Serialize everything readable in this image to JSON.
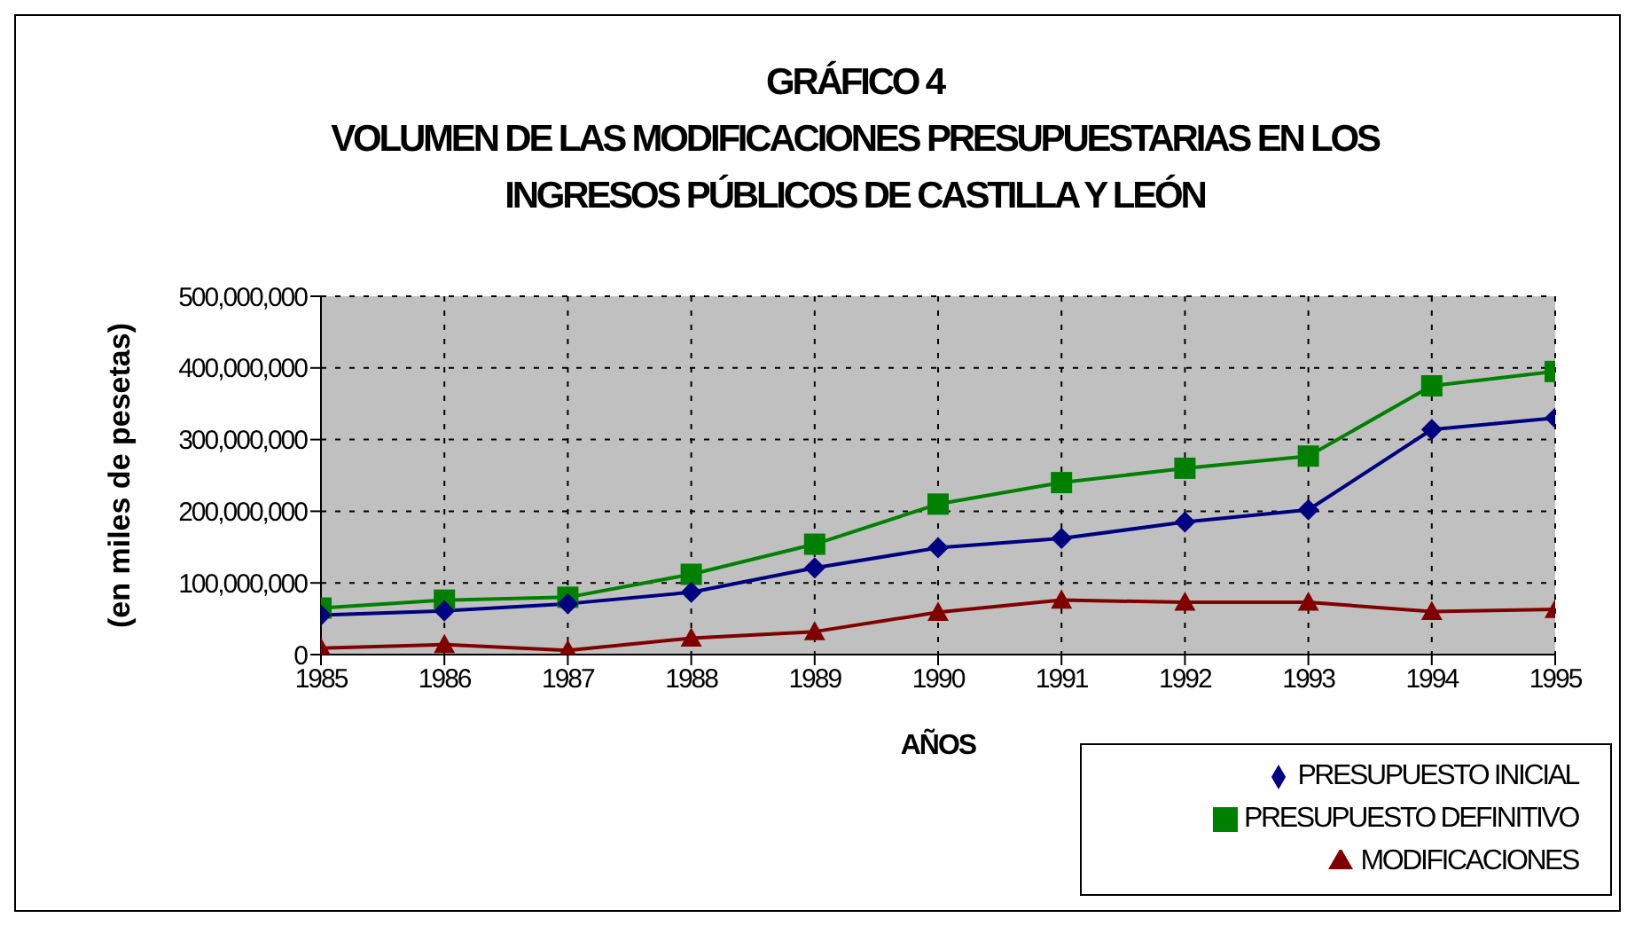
{
  "chart_data": {
    "type": "line",
    "title": "GRÁFICO 4\nVOLUMEN DE LAS MODIFICACIONES PRESUPUESTARIAS EN LOS\nINGRESOS PÚBLICOS DE CASTILLA Y LEÓN",
    "xlabel": "AÑOS",
    "ylabel": "(en miles de pesetas)",
    "x": [
      1985,
      1986,
      1987,
      1988,
      1989,
      1990,
      1991,
      1992,
      1993,
      1994,
      1995
    ],
    "series": [
      {
        "name": "PRESUPUESTO INICIAL",
        "color": "#000080",
        "marker": "diamond",
        "values": [
          55000000,
          61000000,
          71000000,
          87000000,
          121000000,
          149000000,
          162000000,
          185000000,
          202000000,
          314000000,
          330000000
        ]
      },
      {
        "name": "PRESUPUESTO DEFINITIVO",
        "color": "#008000",
        "marker": "square",
        "values": [
          65000000,
          76000000,
          80000000,
          112000000,
          154000000,
          210000000,
          240000000,
          260000000,
          277000000,
          375000000,
          395000000
        ]
      },
      {
        "name": "MODIFICACIONES",
        "color": "#800000",
        "marker": "triangle",
        "values": [
          9000000,
          14000000,
          6000000,
          23000000,
          32000000,
          59000000,
          76000000,
          73000000,
          73000000,
          60000000,
          63000000
        ]
      }
    ],
    "xlim": [
      1985,
      1995
    ],
    "xticks": [
      1985,
      1986,
      1987,
      1988,
      1989,
      1990,
      1991,
      1992,
      1993,
      1994,
      1995
    ],
    "ylim": [
      0,
      500000000
    ],
    "yticks": [
      {
        "value": 0,
        "label": "0"
      },
      {
        "value": 100000000,
        "label": "100,000,000"
      },
      {
        "value": 200000000,
        "label": "200,000,000"
      },
      {
        "value": 300000000,
        "label": "300,000,000"
      },
      {
        "value": 400000000,
        "label": "400,000,000"
      },
      {
        "value": 500000000,
        "label": "500,000,000"
      }
    ],
    "grid": true,
    "legend": "bottom right",
    "line_style": "solid"
  }
}
